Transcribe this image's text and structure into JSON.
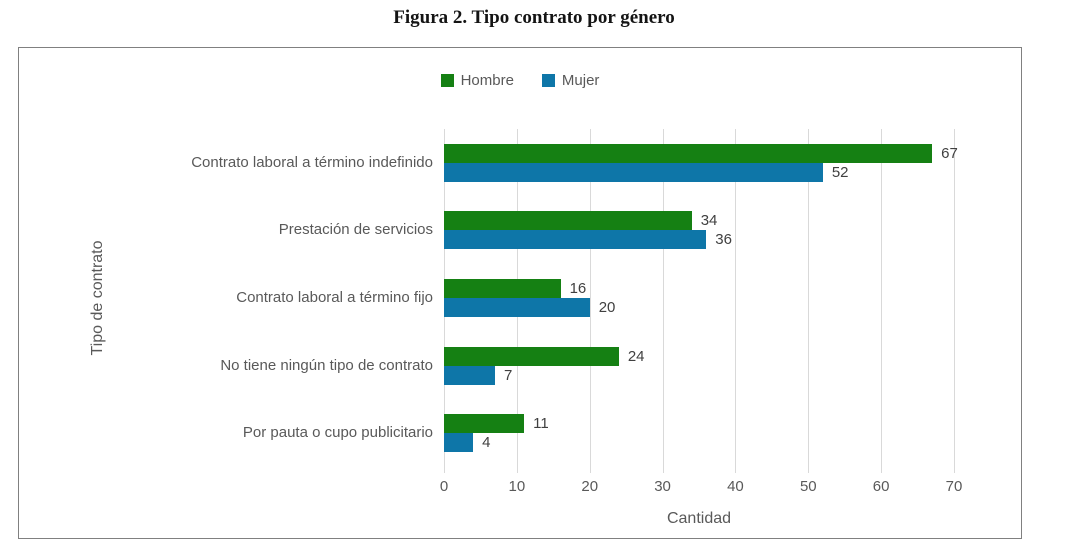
{
  "title": "Figura 2. Tipo contrato por género",
  "chart_data": {
    "type": "bar",
    "orientation": "horizontal",
    "title": "Figura 2. Tipo contrato por género",
    "categories": [
      "Contrato laboral a término indefinido",
      "Prestación de servicios",
      "Contrato laboral a término fijo",
      "No tiene ningún tipo de contrato",
      "Por pauta o cupo publicitario"
    ],
    "series": [
      {
        "name": "Hombre",
        "color": "#158013",
        "values": [
          67,
          34,
          16,
          24,
          11
        ]
      },
      {
        "name": "Mujer",
        "color": "#0e76a8",
        "values": [
          52,
          36,
          20,
          7,
          4
        ]
      }
    ],
    "xlabel": "Cantidad",
    "ylabel": "Tipo de contrato",
    "xlim": [
      0,
      70
    ],
    "x_ticks": [
      0,
      10,
      20,
      30,
      40,
      50,
      60,
      70
    ],
    "grid": true,
    "data_labels": true,
    "legend_position": "top",
    "colors": {
      "grid": "#d9d9d9",
      "frame_border": "#808080",
      "axis_text": "#595959",
      "data_label_text": "#404040"
    }
  }
}
